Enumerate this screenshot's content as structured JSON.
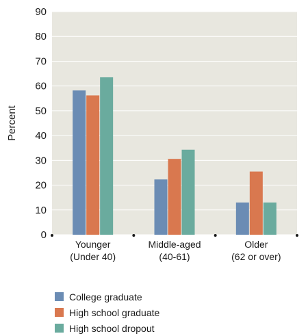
{
  "chart_data": {
    "type": "bar",
    "title": "",
    "xlabel": "",
    "ylabel": "Percent",
    "ylim": [
      0,
      90
    ],
    "yticks": [
      "0",
      "10",
      "20",
      "30",
      "40",
      "50",
      "60",
      "70",
      "80",
      "90"
    ],
    "categories": [
      [
        "Younger",
        "(Under 40)"
      ],
      [
        "Middle-aged",
        "(40-61)"
      ],
      [
        "Older",
        "(62 or over)"
      ]
    ],
    "series": [
      {
        "name": "College graduate",
        "color": "#6b8cb4",
        "values": [
          58.2,
          22.3,
          13.0
        ]
      },
      {
        "name": "High school graduate",
        "color": "#d9784f",
        "values": [
          56.2,
          30.6,
          25.5
        ]
      },
      {
        "name": "High school dropout",
        "color": "#6aab9e",
        "values": [
          63.5,
          34.3,
          13.0
        ]
      }
    ],
    "plot_background": "#e8e7df",
    "grid": true,
    "legend_position": "bottom-left"
  }
}
